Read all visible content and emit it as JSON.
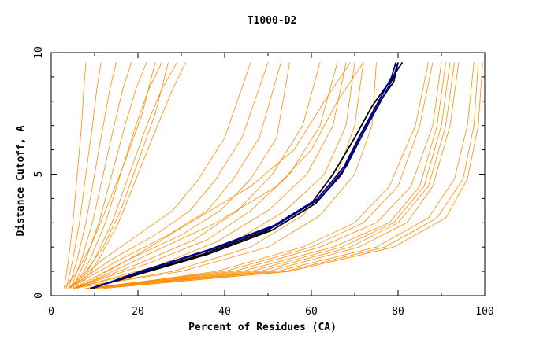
{
  "chart_data": {
    "type": "line",
    "title": "T1000-D2",
    "xlabel": "Percent of Residues (CA)",
    "ylabel": "Distance Cutoff, A",
    "xlim": [
      0,
      100
    ],
    "ylim": [
      0,
      10
    ],
    "x_ticks": [
      0,
      20,
      40,
      60,
      80,
      100
    ],
    "x_tick_labels": [
      "0",
      "20",
      "40",
      "60",
      "80",
      "100"
    ],
    "y_ticks": [
      0,
      5,
      10
    ],
    "y_tick_labels": [
      "0",
      "5",
      "10"
    ],
    "grid": false,
    "legend": "none",
    "colors": {
      "others": "#ff8c00",
      "highlight_dark": "#000000",
      "highlight_blue": "#00008b"
    },
    "series": [
      {
        "color": "#ff8c00",
        "x": [
          3.0,
          4.0,
          5.0,
          6.0,
          7.0,
          7.5,
          8.0
        ],
        "y": [
          0.3,
          1.5,
          3.0,
          5.0,
          7.0,
          8.5,
          9.6
        ]
      },
      {
        "color": "#ff8c00",
        "x": [
          3.5,
          5.0,
          6.5,
          8.0,
          9.5,
          10.5,
          11.5
        ],
        "y": [
          0.3,
          1.5,
          3.0,
          5.0,
          7.0,
          8.5,
          9.6
        ]
      },
      {
        "color": "#ff8c00",
        "x": [
          4.0,
          6.0,
          8.0,
          10.0,
          12.0,
          13.5,
          15.0
        ],
        "y": [
          0.3,
          1.5,
          3.0,
          5.0,
          7.0,
          8.5,
          9.6
        ]
      },
      {
        "color": "#ff8c00",
        "x": [
          4.5,
          7.0,
          9.5,
          12.0,
          14.5,
          16.5,
          18.5
        ],
        "y": [
          0.3,
          1.5,
          3.0,
          5.0,
          7.0,
          8.5,
          9.6
        ]
      },
      {
        "color": "#ff8c00",
        "x": [
          5.0,
          8.0,
          11.0,
          14.0,
          17.0,
          19.5,
          22.0
        ],
        "y": [
          0.3,
          1.5,
          3.0,
          5.0,
          7.0,
          8.5,
          9.6
        ]
      },
      {
        "color": "#ff8c00",
        "x": [
          5.5,
          9.0,
          12.5,
          16.0,
          19.5,
          22.5,
          25.5
        ],
        "y": [
          0.3,
          1.5,
          3.0,
          5.0,
          7.0,
          8.5,
          9.6
        ]
      },
      {
        "color": "#ff8c00",
        "x": [
          6.0,
          10.0,
          14.0,
          18.0,
          22.0,
          25.5,
          29.0
        ],
        "y": [
          0.3,
          1.5,
          3.0,
          5.0,
          7.0,
          8.5,
          9.6
        ]
      },
      {
        "color": "#ff8c00",
        "x": [
          6.5,
          11.0,
          15.5,
          20.0,
          24.5,
          28.0,
          31.0
        ],
        "y": [
          0.3,
          1.5,
          3.0,
          5.0,
          7.0,
          8.5,
          9.6
        ]
      },
      {
        "color": "#ff8c00",
        "x": [
          3.0,
          6.0,
          9.0,
          12.5,
          17.0,
          21.0,
          24.0
        ],
        "y": [
          0.3,
          1.0,
          2.0,
          3.5,
          5.5,
          7.5,
          9.6
        ]
      },
      {
        "color": "#ff8c00",
        "x": [
          4.0,
          8.0,
          12.0,
          16.0,
          20.0,
          24.0,
          27.0
        ],
        "y": [
          0.3,
          1.0,
          2.0,
          3.5,
          5.5,
          7.5,
          9.6
        ]
      },
      {
        "color": "#ff8c00",
        "x": [
          4.0,
          12.0,
          20.0,
          28.0,
          34.0,
          40.0,
          46.0
        ],
        "y": [
          0.3,
          1.5,
          2.5,
          3.5,
          4.8,
          6.5,
          9.6
        ]
      },
      {
        "color": "#ff8c00",
        "x": [
          4.0,
          14.0,
          24.0,
          32.0,
          38.0,
          44.0,
          50.0
        ],
        "y": [
          0.3,
          1.5,
          2.5,
          3.5,
          4.8,
          6.5,
          9.6
        ]
      },
      {
        "color": "#ff8c00",
        "x": [
          4.0,
          16.0,
          27.0,
          36.0,
          42.0,
          48.0,
          53.0
        ],
        "y": [
          0.3,
          1.5,
          2.5,
          3.5,
          4.8,
          6.5,
          9.6
        ]
      },
      {
        "color": "#ff8c00",
        "x": [
          5.0,
          18.0,
          30.0,
          39.0,
          46.0,
          52.0,
          55.0
        ],
        "y": [
          0.3,
          1.5,
          2.5,
          3.5,
          4.8,
          6.5,
          9.6
        ]
      },
      {
        "color": "#ff8c00",
        "x": [
          5.0,
          20.0,
          33.0,
          43.0,
          51.0,
          58.0,
          62.0
        ],
        "y": [
          0.3,
          1.3,
          2.3,
          3.5,
          5.0,
          7.0,
          9.6
        ]
      },
      {
        "color": "#ff8c00",
        "x": [
          5.0,
          22.0,
          36.0,
          46.0,
          55.0,
          62.0,
          66.0
        ],
        "y": [
          0.3,
          1.3,
          2.3,
          3.5,
          5.0,
          7.0,
          9.6
        ]
      },
      {
        "color": "#ff8c00",
        "x": [
          5.0,
          24.0,
          38.0,
          50.0,
          59.0,
          65.0,
          68.0
        ],
        "y": [
          0.3,
          1.2,
          2.2,
          3.5,
          5.0,
          7.0,
          9.6
        ]
      },
      {
        "color": "#ff8c00",
        "x": [
          5.0,
          26.0,
          42.0,
          54.0,
          63.0,
          68.0,
          70.0
        ],
        "y": [
          0.3,
          1.2,
          2.2,
          3.5,
          5.0,
          7.0,
          9.6
        ]
      },
      {
        "color": "#ff8c00",
        "x": [
          5.0,
          28.0,
          46.0,
          58.0,
          66.0,
          70.0,
          72.0
        ],
        "y": [
          0.3,
          1.0,
          2.0,
          3.3,
          5.0,
          7.0,
          9.6
        ]
      },
      {
        "color": "#ff8c00",
        "x": [
          5.0,
          30.0,
          50.0,
          62.0,
          70.0,
          74.0,
          75.0
        ],
        "y": [
          0.3,
          1.0,
          2.0,
          3.3,
          5.0,
          7.0,
          9.6
        ]
      },
      {
        "color": "#ff8c00",
        "x": [
          6.0,
          20.0,
          38.0,
          52.0,
          60.0,
          66.0,
          72.0
        ],
        "y": [
          0.3,
          1.5,
          3.0,
          4.5,
          6.0,
          8.0,
          9.6
        ]
      },
      {
        "color": "#ff8c00",
        "x": [
          6.0,
          18.0,
          32.0,
          46.0,
          56.0,
          63.0,
          69.0
        ],
        "y": [
          0.3,
          1.5,
          3.0,
          4.5,
          6.0,
          8.0,
          9.6
        ]
      },
      {
        "color": "#ff8c00",
        "x": [
          8.0,
          40.0,
          60.0,
          72.0,
          80.0,
          85.0,
          88.0
        ],
        "y": [
          0.3,
          1.0,
          2.0,
          3.0,
          4.5,
          7.0,
          9.6
        ]
      },
      {
        "color": "#ff8c00",
        "x": [
          8.0,
          42.0,
          62.0,
          75.0,
          83.0,
          88.0,
          90.0
        ],
        "y": [
          0.3,
          1.0,
          2.0,
          3.0,
          4.5,
          7.0,
          9.6
        ]
      },
      {
        "color": "#ff8c00",
        "x": [
          8.0,
          44.0,
          65.0,
          78.0,
          85.0,
          89.0,
          91.0
        ],
        "y": [
          0.3,
          1.0,
          2.0,
          3.0,
          4.5,
          7.0,
          9.6
        ]
      },
      {
        "color": "#ff8c00",
        "x": [
          9.0,
          46.0,
          67.0,
          79.0,
          86.0,
          90.0,
          92.0
        ],
        "y": [
          0.3,
          1.0,
          2.0,
          3.0,
          4.5,
          7.0,
          9.6
        ]
      },
      {
        "color": "#ff8c00",
        "x": [
          9.0,
          48.0,
          69.0,
          80.0,
          87.0,
          91.0,
          93.0
        ],
        "y": [
          0.3,
          1.0,
          2.0,
          3.0,
          4.5,
          7.0,
          9.6
        ]
      },
      {
        "color": "#ff8c00",
        "x": [
          10.0,
          50.0,
          71.0,
          82.0,
          88.0,
          92.0,
          94.0
        ],
        "y": [
          0.3,
          1.0,
          2.0,
          3.0,
          4.5,
          7.0,
          9.6
        ]
      },
      {
        "color": "#ff8c00",
        "x": [
          10.0,
          38.0,
          58.0,
          70.0,
          78.0,
          84.0,
          87.0
        ],
        "y": [
          0.3,
          1.0,
          2.0,
          3.0,
          4.5,
          7.0,
          9.6
        ]
      },
      {
        "color": "#ff8c00",
        "x": [
          10.0,
          52.0,
          75.0,
          87.0,
          93.0,
          96.0,
          97.5
        ],
        "y": [
          0.3,
          1.0,
          2.0,
          3.2,
          4.8,
          7.0,
          9.6
        ]
      },
      {
        "color": "#ff8c00",
        "x": [
          12.0,
          55.0,
          79.0,
          91.0,
          96.0,
          98.5,
          99.5
        ],
        "y": [
          0.3,
          1.0,
          2.0,
          3.2,
          4.8,
          7.0,
          9.6
        ]
      },
      {
        "color": "#ff8c00",
        "x": [
          12.0,
          54.0,
          77.0,
          89.0,
          95.0,
          97.5,
          98.5
        ],
        "y": [
          0.3,
          1.0,
          2.0,
          3.2,
          4.8,
          7.0,
          9.6
        ]
      },
      {
        "color": "#000000",
        "x": [
          9.0,
          20.0,
          35.0,
          50.0,
          60.0,
          65.0,
          70.0,
          74.0,
          78.0,
          81.0
        ],
        "y": [
          0.3,
          0.9,
          1.7,
          2.7,
          3.8,
          5.0,
          6.5,
          7.8,
          8.8,
          9.6
        ]
      },
      {
        "color": "#000000",
        "x": [
          9.0,
          20.5,
          36.0,
          51.0,
          61.0,
          67.0,
          71.0,
          75.0,
          79.0,
          80.0
        ],
        "y": [
          0.3,
          0.9,
          1.7,
          2.7,
          3.8,
          5.0,
          6.5,
          7.8,
          8.8,
          9.6
        ]
      },
      {
        "color": "#00008b",
        "x": [
          9.5,
          21.0,
          37.0,
          52.0,
          62.0,
          68.0,
          72.0,
          76.0,
          79.0,
          80.0
        ],
        "y": [
          0.3,
          1.0,
          1.9,
          2.9,
          4.0,
          5.3,
          6.7,
          8.0,
          9.0,
          9.6
        ]
      },
      {
        "color": "#00008b",
        "x": [
          9.5,
          20.5,
          36.5,
          51.5,
          61.5,
          67.5,
          71.5,
          75.5,
          78.5,
          79.5
        ],
        "y": [
          0.3,
          1.0,
          1.9,
          2.9,
          4.0,
          5.3,
          6.7,
          8.0,
          9.0,
          9.6
        ]
      }
    ]
  }
}
